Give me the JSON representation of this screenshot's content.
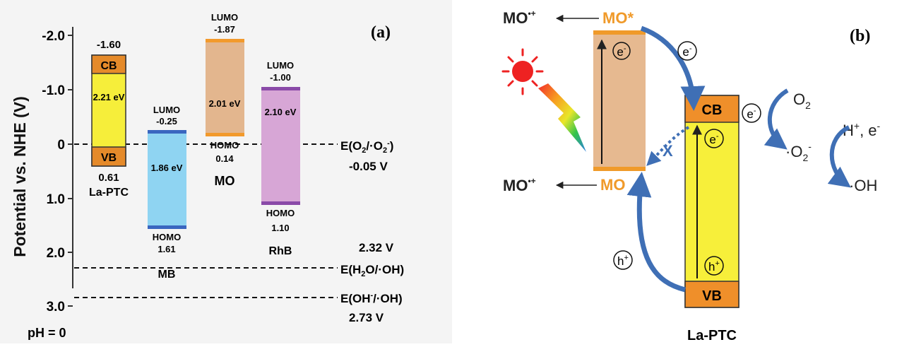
{
  "panel_a": {
    "label": "(a)",
    "y_axis_title": "Potential vs. NHE (V)",
    "y_ticks": [
      "-2.0",
      "-1.0",
      "0",
      "1.0",
      "2.0",
      "3.0"
    ],
    "ph_label": "pH = 0",
    "materials": [
      {
        "id": "lapt",
        "name": "La-PTC",
        "top_value": "-1.60",
        "bottom_value": "0.61",
        "band_gap": "2.21 eV",
        "cb_label": "CB",
        "vb_label": "VB",
        "top_potential": -1.6,
        "bottom_potential": 0.61,
        "color": "#f6ee3a",
        "edge_color": "#e58a2a"
      },
      {
        "id": "mb",
        "name": "MB",
        "top_label": "LUMO",
        "top_value": "-0.25",
        "bottom_label": "HOMO",
        "bottom_value": "1.61",
        "band_gap": "1.86 eV",
        "top_potential": -0.25,
        "bottom_potential": 1.61,
        "color": "#8fd4f2",
        "edge_color": "#3a66c0"
      },
      {
        "id": "mo",
        "name": "MO",
        "top_label": "LUMO",
        "top_value": "-1.87",
        "bottom_label": "HOMO",
        "bottom_value": "0.14",
        "band_gap": "2.01 eV",
        "top_potential": -1.87,
        "bottom_potential": 0.14,
        "color": "#e3b68e",
        "edge_color": "#f29a2c"
      },
      {
        "id": "rhb",
        "name": "RhB",
        "top_label": "LUMO",
        "top_value": "-1.00",
        "bottom_label": "HOMO",
        "bottom_value": "1.10",
        "band_gap": "2.10 eV",
        "top_potential": -1.0,
        "bottom_potential": 1.1,
        "color": "#d7a6d6",
        "edge_color": "#8a4aa8"
      }
    ],
    "reference_lines": [
      {
        "potential": -0.05,
        "label": "E(O2/·O2-)",
        "value": "-0.05 V"
      },
      {
        "potential": 2.32,
        "label": "E(H2O/·OH)",
        "value": "2.32 V"
      },
      {
        "potential": 2.73,
        "label": "E(OH-/·OH)",
        "value": "2.73 V"
      }
    ]
  },
  "panel_b": {
    "label": "(b)",
    "mo_excited": "MO*",
    "mo_ground": "MO",
    "mo_radical": "MO•+",
    "electron": "e-",
    "hole": "h+",
    "cb_label": "CB",
    "vb_label": "VB",
    "material_name": "La-PTC",
    "o2": "O2",
    "superoxide": "·O2-",
    "h_e": "H+, e-",
    "oh_radical": "·OH",
    "colors": {
      "arrow_blue": "#3f6fb5",
      "mo_orange": "#f09a2a",
      "mo_fill": "#e6b990",
      "lapt_fill": "#f7ef3a",
      "band_orange": "#ef8f2a"
    }
  }
}
